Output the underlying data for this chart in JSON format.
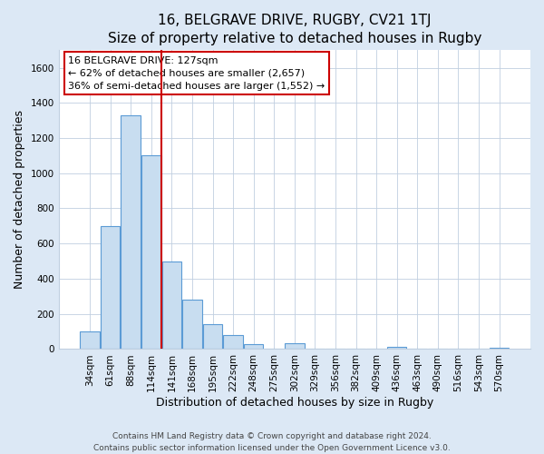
{
  "title": "16, BELGRAVE DRIVE, RUGBY, CV21 1TJ",
  "subtitle": "Size of property relative to detached houses in Rugby",
  "xlabel": "Distribution of detached houses by size in Rugby",
  "ylabel": "Number of detached properties",
  "bar_labels": [
    "34sqm",
    "61sqm",
    "88sqm",
    "114sqm",
    "141sqm",
    "168sqm",
    "195sqm",
    "222sqm",
    "248sqm",
    "275sqm",
    "302sqm",
    "329sqm",
    "356sqm",
    "382sqm",
    "409sqm",
    "436sqm",
    "463sqm",
    "490sqm",
    "516sqm",
    "543sqm",
    "570sqm"
  ],
  "bar_values": [
    100,
    700,
    1330,
    1100,
    500,
    280,
    140,
    80,
    30,
    0,
    35,
    0,
    0,
    0,
    0,
    15,
    0,
    0,
    0,
    0,
    5
  ],
  "bar_color": "#c8ddf0",
  "bar_edge_color": "#5b9bd5",
  "vline_position": 3.5,
  "vline_color": "#cc0000",
  "annotation_line1": "16 BELGRAVE DRIVE: 127sqm",
  "annotation_line2": "← 62% of detached houses are smaller (2,657)",
  "annotation_line3": "36% of semi-detached houses are larger (1,552) →",
  "annotation_box_color": "#ffffff",
  "annotation_box_edge": "#cc0000",
  "ylim": [
    0,
    1700
  ],
  "yticks": [
    0,
    200,
    400,
    600,
    800,
    1000,
    1200,
    1400,
    1600
  ],
  "footer1": "Contains HM Land Registry data © Crown copyright and database right 2024.",
  "footer2": "Contains public sector information licensed under the Open Government Licence v3.0.",
  "fig_bg_color": "#dce8f5",
  "plot_bg_color": "#ffffff",
  "grid_color": "#c0cfe0",
  "title_fontsize": 11,
  "subtitle_fontsize": 10,
  "axis_label_fontsize": 9,
  "tick_fontsize": 7.5,
  "annotation_fontsize": 8,
  "footer_fontsize": 6.5
}
